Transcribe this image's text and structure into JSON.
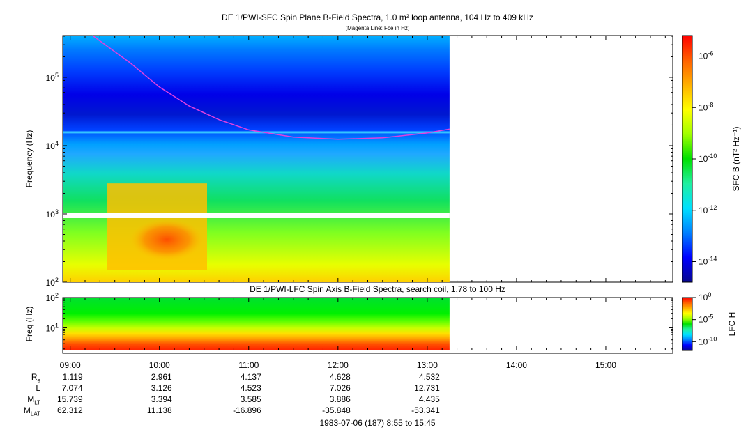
{
  "panels": {
    "top_title": "DE 1/PWI-SFC  Spin Plane B-Field Spectra, 1.0 m² loop antenna, 104 Hz to 409 kHz",
    "top_subtitle": "(Magenta Line: Fce in Hz)",
    "bottom_title": "DE 1/PWI-LFC  Spin Axis B-Field Spectra, search coil, 1.78 to 100 Hz",
    "footer": "1983-07-06 (187) 8:55 to 15:45"
  },
  "colors": {
    "fce_line": "#e040e0",
    "colorbar": [
      "#08088e",
      "#0000ff",
      "#0080ff",
      "#00e0ff",
      "#20f0a0",
      "#00e000",
      "#a0ff00",
      "#ffff00",
      "#ffb000",
      "#ff6000",
      "#ff0000"
    ]
  },
  "chart_data": [
    {
      "type": "heatmap",
      "name_id": "sfc",
      "ylabel": "Frequency (Hz)",
      "yscale": "log",
      "ylim": [
        100,
        409000
      ],
      "y_ticks": [
        "10^2",
        "10^3",
        "10^4",
        "10^5"
      ],
      "xlim": [
        "08:55",
        "15:45"
      ],
      "data_end": "13:15",
      "colorbar_label": "SFC B (nT² Hz⁻¹)",
      "colorbar_scale": "log",
      "colorbar_ticks": [
        "10^-6",
        "10^-8",
        "10^-10",
        "10^-12",
        "10^-14"
      ],
      "fce_line": [
        {
          "t": "09:15",
          "f": 409000
        },
        {
          "t": "09:40",
          "f": 165000
        },
        {
          "t": "10:00",
          "f": 72000
        },
        {
          "t": "10:20",
          "f": 38000
        },
        {
          "t": "10:40",
          "f": 24000
        },
        {
          "t": "11:00",
          "f": 17000
        },
        {
          "t": "11:30",
          "f": 13300
        },
        {
          "t": "12:00",
          "f": 12400
        },
        {
          "t": "12:30",
          "f": 13000
        },
        {
          "t": "13:00",
          "f": 15300
        },
        {
          "t": "13:15",
          "f": 17500
        }
      ]
    },
    {
      "type": "heatmap",
      "name_id": "lfc",
      "ylabel": "Freq (Hz)",
      "yscale": "log",
      "ylim": [
        1.78,
        100
      ],
      "y_ticks": [
        "10^1",
        "10^2"
      ],
      "xlim": [
        "08:55",
        "15:45"
      ],
      "data_end": "13:15",
      "colorbar_label": "LFC H",
      "colorbar_scale": "log",
      "colorbar_ticks": [
        "10^0",
        "10^-5",
        "10^-10"
      ]
    }
  ],
  "x_ticks": [
    "09:00",
    "10:00",
    "11:00",
    "12:00",
    "13:00",
    "14:00",
    "15:00"
  ],
  "ephemeris": {
    "labels": [
      {
        "base": "R",
        "sub": "e"
      },
      {
        "base": "L",
        "sub": ""
      },
      {
        "base": "M",
        "sub": "LT"
      },
      {
        "base": "M",
        "sub": "LAT"
      }
    ],
    "rows": [
      [
        "1.119",
        "2.961",
        "4.137",
        "4.628",
        "4.532"
      ],
      [
        "7.074",
        "3.126",
        "4.523",
        "7.026",
        "12.731"
      ],
      [
        "15.739",
        "3.394",
        "3.585",
        "3.886",
        "4.435"
      ],
      [
        "62.312",
        "11.138",
        "-16.896",
        "-35.848",
        "-53.341"
      ]
    ]
  }
}
